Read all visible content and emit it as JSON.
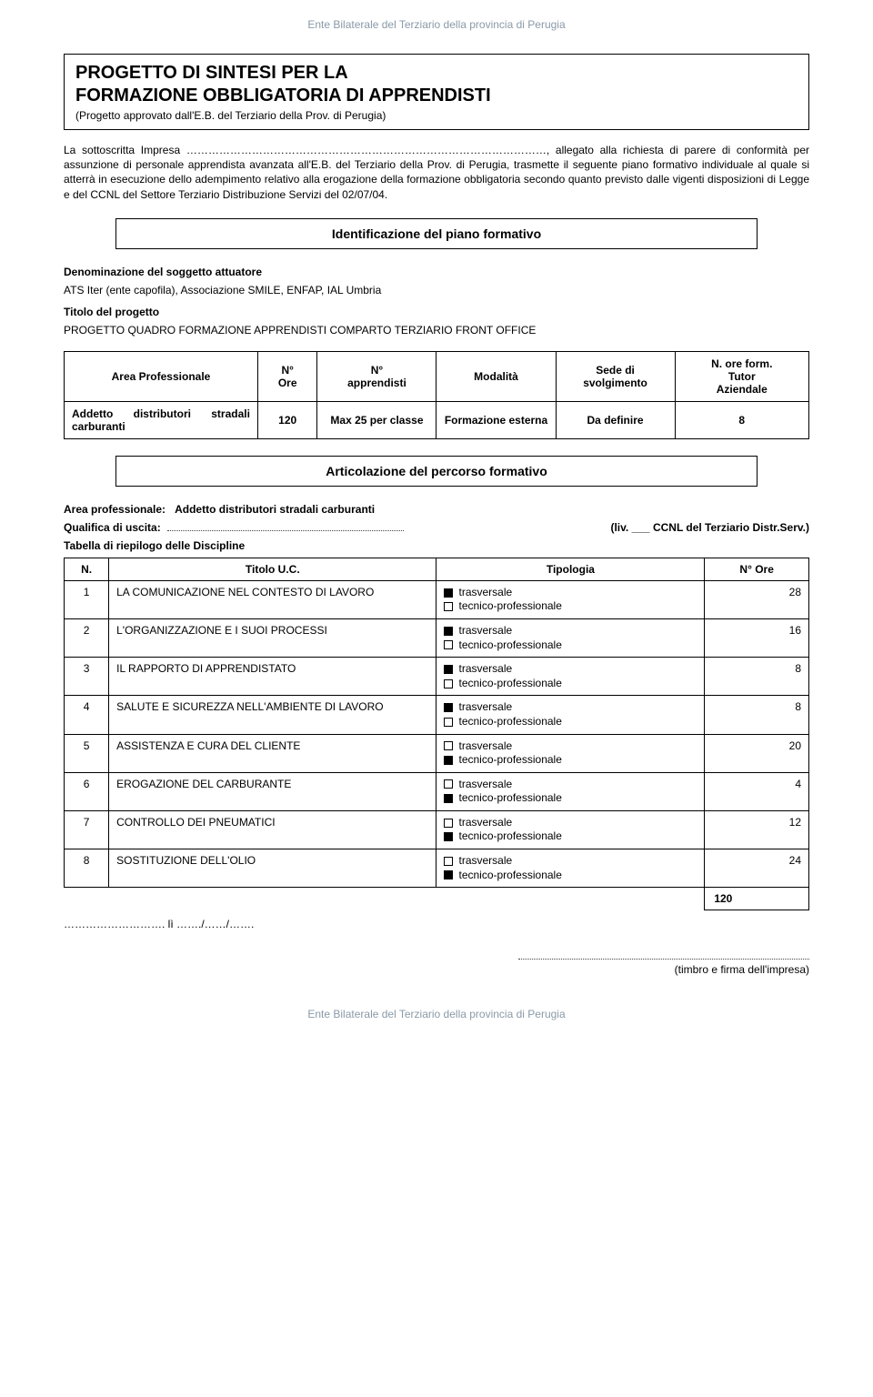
{
  "header": "Ente Bilaterale del Terziario della provincia di Perugia",
  "footer": "Ente Bilaterale del Terziario della provincia di Perugia",
  "titleBox": {
    "line1": "PROGETTO DI SINTESI PER LA",
    "line2": "FORMAZIONE OBBLIGATORIA DI APPRENDISTI",
    "sub": "(Progetto approvato dall'E.B. del Terziario della Prov. di Perugia)"
  },
  "intro": "La sottoscritta Impresa ………………………………………………………………………………………, allegato alla richiesta di parere di conformità per assunzione di personale apprendista avanzata all'E.B. del Terziario della Prov. di Perugia, trasmette il seguente piano formativo individuale al quale si atterrà in esecuzione dello adempimento relativo alla erogazione della formazione obbligatoria secondo quanto previsto dalle vigenti disposizioni di Legge e del CCNL del Settore Terziario Distribuzione Servizi del 02/07/04.",
  "section1": "Identificazione del piano formativo",
  "denomLabel": "Denominazione del soggetto attuatore",
  "denomValue": "ATS Iter (ente capofila), Associazione SMILE, ENFAP, IAL Umbria",
  "titoloLabel": "Titolo del progetto",
  "titoloValue": "PROGETTO QUADRO FORMAZIONE APPRENDISTI COMPARTO TERZIARIO FRONT OFFICE",
  "mainTable": {
    "headers": [
      "Area Professionale",
      "N°\nOre",
      "N°\napprendisti",
      "Modalità",
      "Sede di\nsvolgimento",
      "N. ore form.\nTutor\nAziendale"
    ],
    "row": {
      "area": "Addetto distributori stradali carburanti",
      "ore": "120",
      "appr": "Max 25 per classe",
      "mod": "Formazione esterna",
      "sede": "Da definire",
      "tutor": "8"
    }
  },
  "section2": "Articolazione del percorso formativo",
  "areaProfLabel": "Area professionale:",
  "areaProfValue": "Addetto distributori stradali carburanti",
  "qualLabel": "Qualifica di uscita:",
  "qualRight": "(liv. ___ CCNL del Terziario Distr.Serv.)",
  "tabRiepilogo": "Tabella di riepilogo delle Discipline",
  "discHeaders": {
    "n": "N.",
    "titolo": "Titolo U.C.",
    "tip": "Tipologia",
    "ore": "N° Ore"
  },
  "tipLabels": {
    "trasv": "trasversale",
    "tec": "tecnico-professionale"
  },
  "rows": [
    {
      "n": "1",
      "t": "LA COMUNICAZIONE NEL CONTESTO DI LAVORO",
      "trasv": true,
      "tec": false,
      "ore": "28"
    },
    {
      "n": "2",
      "t": "L'ORGANIZZAZIONE E I SUOI PROCESSI",
      "trasv": true,
      "tec": false,
      "ore": "16"
    },
    {
      "n": "3",
      "t": "IL RAPPORTO DI APPRENDISTATO",
      "trasv": true,
      "tec": false,
      "ore": "8"
    },
    {
      "n": "4",
      "t": "SALUTE E SICUREZZA NELL'AMBIENTE DI LAVORO",
      "trasv": true,
      "tec": false,
      "ore": "8"
    },
    {
      "n": "5",
      "t": "ASSISTENZA E CURA DEL CLIENTE",
      "trasv": false,
      "tec": true,
      "ore": "20"
    },
    {
      "n": "6",
      "t": "EROGAZIONE DEL CARBURANTE",
      "trasv": false,
      "tec": true,
      "ore": "4"
    },
    {
      "n": "7",
      "t": "CONTROLLO DEI PNEUMATICI",
      "trasv": false,
      "tec": true,
      "ore": "12"
    },
    {
      "n": "8",
      "t": "SOSTITUZIONE DELL'OLIO",
      "trasv": false,
      "tec": true,
      "ore": "24"
    }
  ],
  "total": "120",
  "placeDate": "………………………. lì ……./……/…….",
  "signLabel": "(timbro e firma dell'impresa)"
}
